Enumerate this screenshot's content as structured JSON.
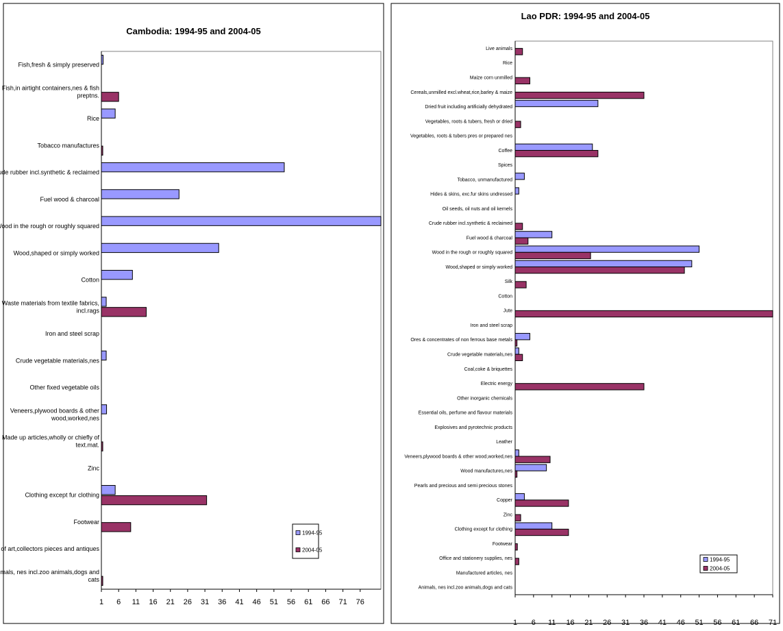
{
  "chart_data": [
    {
      "type": "bar",
      "orientation": "horizontal",
      "title": "Cambodia: 1994-95 and 2004-05",
      "xlabel": "",
      "ylabel": "",
      "xlim": [
        1,
        82
      ],
      "xticks": [
        1,
        6,
        11,
        16,
        21,
        26,
        31,
        36,
        41,
        46,
        51,
        56,
        61,
        66,
        71,
        76
      ],
      "legend_position": "bottom-right",
      "categories": [
        [
          "Fish,fresh & simply preserved"
        ],
        [
          "Fish,in airtight containers,nes & fish",
          "preptns."
        ],
        [
          "Rice"
        ],
        [
          "Tobacco manufactures"
        ],
        [
          "Crude rubber incl.synthetic & reclaimed"
        ],
        [
          "Fuel wood & charcoal"
        ],
        [
          "Wood in the rough or roughly squared"
        ],
        [
          "Wood,shaped or simply worked"
        ],
        [
          "Cotton"
        ],
        [
          "Waste materials from textile fabrics,",
          "incl.rags"
        ],
        [
          "Iron and steel scrap"
        ],
        [
          "Crude vegetable materials,nes"
        ],
        [
          "Other fixed vegetable oils"
        ],
        [
          "Veneers,plywood boards & other",
          "wood,worked,nes"
        ],
        [
          "Made up articles,wholly or chiefly of",
          "text.mat."
        ],
        [
          "Zinc"
        ],
        [
          "Clothing except fur clothing"
        ],
        [
          "Footwear"
        ],
        [
          "Works of art,collectors pieces and antiques"
        ],
        [
          "Animals, nes incl.zoo animals,dogs and",
          "cats"
        ]
      ],
      "series": [
        {
          "name": "1994-95",
          "color": "#9999ff",
          "values": [
            1.5,
            0,
            5,
            0,
            54,
            23.5,
            82,
            35,
            10,
            2.4,
            0,
            2.4,
            0,
            2.5,
            0,
            0,
            5,
            0,
            0,
            0
          ]
        },
        {
          "name": "2004-05",
          "color": "#993366",
          "values": [
            0,
            6,
            0,
            1.4,
            0,
            0,
            0,
            0,
            0,
            14,
            0,
            0,
            0,
            0,
            1.4,
            0,
            31.5,
            9.5,
            0,
            1.4
          ]
        }
      ]
    },
    {
      "type": "bar",
      "orientation": "horizontal",
      "title": "Lao PDR: 1994-95 and 2004-05",
      "xlabel": "",
      "ylabel": "",
      "xlim": [
        1,
        71
      ],
      "xticks": [
        1,
        6,
        11,
        16,
        21,
        26,
        31,
        36,
        41,
        46,
        51,
        56,
        61,
        66,
        71
      ],
      "legend_position": "bottom-right",
      "categories": [
        [
          "Live animals"
        ],
        [
          "Rice"
        ],
        [
          "Maize  corn  unmilled"
        ],
        [
          "Cereals,unmilled excl.wheat,rice,barley & maize"
        ],
        [
          "Dried fruit including artificially dehydrated"
        ],
        [
          "Vegetables, roots & tubers, fresh or dried"
        ],
        [
          "Vegetables, roots & tubers pres or prepared nes"
        ],
        [
          "Coffee"
        ],
        [
          "Spices"
        ],
        [
          "Tobacco, unmanufactured"
        ],
        [
          "Hides & skins, exc.fur skins undressed"
        ],
        [
          "Oil seeds, oil nuts and oil kernels"
        ],
        [
          "Crude rubber incl.synthetic & reclaimed"
        ],
        [
          "Fuel wood & charcoal"
        ],
        [
          "Wood in the rough or roughly squared"
        ],
        [
          "Wood,shaped or simply worked"
        ],
        [
          "Silk"
        ],
        [
          "Cotton"
        ],
        [
          "Jute"
        ],
        [
          "Iron and steel scrap"
        ],
        [
          "Ores & concentrates of non ferrous base metals"
        ],
        [
          "Crude vegetable materials,nes"
        ],
        [
          "Coal,coke & briquettes"
        ],
        [
          "Electric energy"
        ],
        [
          "Other inorganic chemicals"
        ],
        [
          "Essential oils, perfume and flavour materials"
        ],
        [
          "Explosives and pyrotechnic products"
        ],
        [
          "Leather"
        ],
        [
          "Veneers,plywood boards & other wood,worked,nes"
        ],
        [
          "Wood manufactures,nes"
        ],
        [
          "Pearls and precious and semi precious stones"
        ],
        [
          "Copper"
        ],
        [
          "Zinc"
        ],
        [
          "Clothing except fur clothing"
        ],
        [
          "Footwear"
        ],
        [
          "Office and stationery supplies, nes"
        ],
        [
          "Manufactured articles, nes"
        ],
        [
          "Animals, nes incl.zoo animals,dogs and cats"
        ]
      ],
      "series": [
        {
          "name": "1994-95",
          "color": "#9999ff",
          "values": [
            0,
            0,
            0,
            0,
            23.5,
            0,
            0,
            22,
            0,
            3.5,
            2,
            0,
            0,
            11,
            51,
            49,
            0,
            0,
            0,
            0.5,
            5,
            2,
            0,
            0,
            0,
            0,
            0,
            0.5,
            2,
            9.5,
            0,
            3.5,
            0,
            11,
            0,
            0,
            0,
            0
          ]
        },
        {
          "name": "2004-05",
          "color": "#993366",
          "values": [
            3,
            0,
            5,
            36,
            0,
            2.5,
            0.5,
            23.5,
            1,
            0,
            0.8,
            0.3,
            3,
            4.5,
            21.5,
            47,
            4,
            0.5,
            71,
            0,
            1.5,
            3,
            0.5,
            36,
            1,
            0.2,
            0.2,
            0,
            10.5,
            1.5,
            0.3,
            15.5,
            2.5,
            15.5,
            1.6,
            2,
            0,
            1
          ]
        }
      ]
    }
  ]
}
